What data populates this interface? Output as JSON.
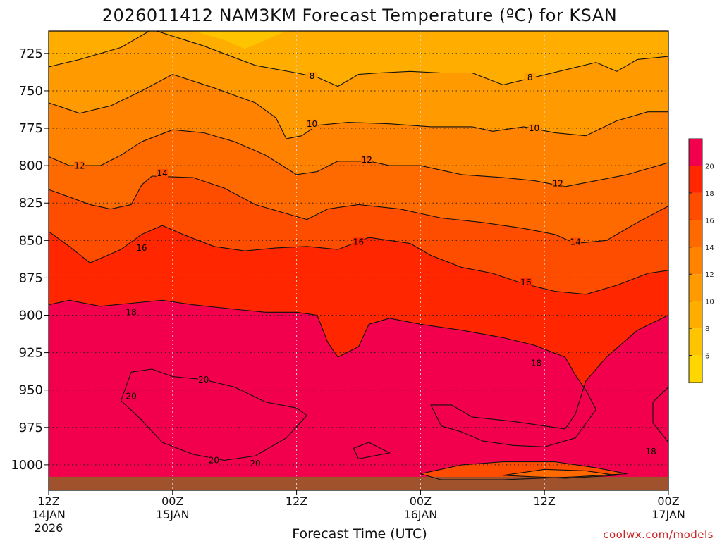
{
  "chart_data": {
    "type": "contour",
    "title": "2026011412 NAM3KM Forecast Temperature (ºC) for KSAN",
    "xlabel": "Forecast Time (UTC)",
    "ylabel": "",
    "credit": "coolwx.com/models",
    "x_ticks": [
      {
        "hour": 0,
        "line1": "12Z",
        "line2": "14JAN",
        "line3": "2026"
      },
      {
        "hour": 12,
        "line1": "00Z",
        "line2": "15JAN",
        "line3": ""
      },
      {
        "hour": 24,
        "line1": "12Z",
        "line2": "",
        "line3": ""
      },
      {
        "hour": 36,
        "line1": "00Z",
        "line2": "16JAN",
        "line3": ""
      },
      {
        "hour": 48,
        "line1": "12Z",
        "line2": "",
        "line3": ""
      },
      {
        "hour": 60,
        "line1": "00Z",
        "line2": "17JAN",
        "line3": ""
      }
    ],
    "xlim": [
      0,
      60
    ],
    "y_ticks": [
      725,
      750,
      775,
      800,
      825,
      850,
      875,
      900,
      925,
      950,
      975,
      1000
    ],
    "ylim": [
      1017,
      710
    ],
    "colorbar": {
      "levels": [
        4,
        6,
        8,
        10,
        12,
        14,
        16,
        18,
        20,
        22
      ],
      "tick_labels": [
        "6",
        "8",
        "10",
        "12",
        "14",
        "16",
        "18",
        "20"
      ],
      "colors": [
        "#ffd700",
        "#ffc400",
        "#ffae00",
        "#ff9a00",
        "#ff8200",
        "#ff6a00",
        "#ff4d00",
        "#ff2600",
        "#f2004e"
      ]
    },
    "contours": [
      {
        "level": 8,
        "labels": [
          {
            "x": 25.5,
            "y": 741
          },
          {
            "x": 46.6,
            "y": 742
          }
        ],
        "points": [
          [
            0,
            734
          ],
          [
            3,
            729
          ],
          [
            7,
            721
          ],
          [
            10,
            709
          ],
          [
            15,
            720
          ],
          [
            20,
            733
          ],
          [
            24,
            738
          ],
          [
            26,
            741
          ],
          [
            28,
            747
          ],
          [
            30,
            739
          ],
          [
            32,
            738
          ],
          [
            35,
            737
          ],
          [
            38,
            738
          ],
          [
            41,
            738
          ],
          [
            44,
            746
          ],
          [
            47,
            741
          ],
          [
            50,
            736
          ],
          [
            53,
            731
          ],
          [
            55,
            737
          ],
          [
            57,
            729
          ],
          [
            60,
            727
          ]
        ]
      },
      {
        "level": 10,
        "labels": [
          {
            "x": 25.5,
            "y": 773
          },
          {
            "x": 47.0,
            "y": 776
          }
        ],
        "points": [
          [
            0,
            758
          ],
          [
            3,
            765
          ],
          [
            6,
            760
          ],
          [
            9,
            750
          ],
          [
            12,
            739
          ],
          [
            16,
            748
          ],
          [
            20,
            758
          ],
          [
            22,
            768
          ],
          [
            23,
            782
          ],
          [
            24.5,
            780
          ],
          [
            26,
            773
          ],
          [
            29,
            771
          ],
          [
            33,
            772
          ],
          [
            37,
            774
          ],
          [
            41,
            774
          ],
          [
            43,
            777
          ],
          [
            46,
            774
          ],
          [
            49,
            778
          ],
          [
            52,
            780
          ],
          [
            55,
            770
          ],
          [
            58,
            764
          ],
          [
            60,
            764
          ]
        ]
      },
      {
        "level": 12,
        "labels": [
          {
            "x": 3,
            "y": 801
          },
          {
            "x": 30.8,
            "y": 797
          },
          {
            "x": 49.3,
            "y": 813
          }
        ],
        "points": [
          [
            0,
            794
          ],
          [
            2,
            800
          ],
          [
            5,
            800
          ],
          [
            7,
            793
          ],
          [
            9,
            784
          ],
          [
            12,
            776
          ],
          [
            15,
            778
          ],
          [
            18,
            784
          ],
          [
            21,
            793
          ],
          [
            24,
            806
          ],
          [
            26,
            804
          ],
          [
            28,
            797
          ],
          [
            31,
            797
          ],
          [
            33,
            800
          ],
          [
            36,
            800
          ],
          [
            40,
            806
          ],
          [
            44,
            808
          ],
          [
            47,
            810
          ],
          [
            50,
            814
          ],
          [
            53,
            810
          ],
          [
            56,
            806
          ],
          [
            60,
            798
          ]
        ]
      },
      {
        "level": 14,
        "labels": [
          {
            "x": 11,
            "y": 806
          },
          {
            "x": 51,
            "y": 852
          }
        ],
        "points": [
          [
            0,
            816
          ],
          [
            2,
            821
          ],
          [
            4,
            826
          ],
          [
            6,
            829
          ],
          [
            8,
            826
          ],
          [
            9,
            813
          ],
          [
            10,
            807
          ],
          [
            14,
            808
          ],
          [
            17,
            815
          ],
          [
            20,
            826
          ],
          [
            23,
            832
          ],
          [
            25,
            836
          ],
          [
            27,
            829
          ],
          [
            30,
            826
          ],
          [
            34,
            829
          ],
          [
            38,
            835
          ],
          [
            42,
            838
          ],
          [
            46,
            842
          ],
          [
            49,
            846
          ],
          [
            51,
            852
          ],
          [
            54,
            850
          ],
          [
            57,
            838
          ],
          [
            60,
            827
          ]
        ]
      },
      {
        "level": 16,
        "labels": [
          {
            "x": 9,
            "y": 856
          },
          {
            "x": 30,
            "y": 852
          },
          {
            "x": 46.2,
            "y": 879
          }
        ],
        "points": [
          [
            0,
            844
          ],
          [
            2,
            854
          ],
          [
            4,
            865
          ],
          [
            7,
            856
          ],
          [
            9,
            846
          ],
          [
            11,
            840
          ],
          [
            13,
            846
          ],
          [
            16,
            854
          ],
          [
            19,
            857
          ],
          [
            22,
            855
          ],
          [
            25,
            854
          ],
          [
            28,
            856
          ],
          [
            31,
            848
          ],
          [
            35,
            852
          ],
          [
            37,
            860
          ],
          [
            40,
            868
          ],
          [
            43,
            872
          ],
          [
            46,
            879
          ],
          [
            49,
            884
          ],
          [
            52,
            886
          ],
          [
            55,
            880
          ],
          [
            58,
            872
          ],
          [
            60,
            870
          ]
        ]
      },
      {
        "level": 18,
        "labels": [
          {
            "x": 8,
            "y": 899
          },
          {
            "x": 47.2,
            "y": 933
          },
          {
            "x": 58.3,
            "y": 992
          }
        ],
        "points": [
          [
            0,
            893
          ],
          [
            2,
            890
          ],
          [
            5,
            894
          ],
          [
            8,
            892
          ],
          [
            11,
            890
          ],
          [
            14,
            893
          ],
          [
            18,
            896
          ],
          [
            21,
            898
          ],
          [
            24,
            898
          ],
          [
            26,
            900
          ],
          [
            27,
            918
          ],
          [
            28,
            928
          ],
          [
            30,
            921
          ],
          [
            31,
            906
          ],
          [
            33,
            902
          ],
          [
            36,
            906
          ],
          [
            40,
            910
          ],
          [
            44,
            915
          ],
          [
            47,
            920
          ],
          [
            50,
            928
          ],
          [
            51,
            940
          ],
          [
            52,
            950
          ],
          [
            53,
            963
          ],
          [
            51,
            982
          ],
          [
            48,
            988
          ],
          [
            45,
            987
          ],
          [
            42,
            984
          ],
          [
            40,
            978
          ],
          [
            38,
            974
          ],
          [
            37,
            960
          ],
          [
            39,
            960
          ],
          [
            41,
            968
          ],
          [
            45,
            971
          ],
          [
            48,
            974
          ],
          [
            50,
            976
          ],
          [
            51,
            966
          ],
          [
            52,
            944
          ],
          [
            54,
            928
          ],
          [
            57,
            910
          ],
          [
            60,
            900
          ]
        ]
      },
      {
        "level": 20,
        "labels": [
          {
            "x": 15,
            "y": 944
          },
          {
            "x": 8,
            "y": 955
          },
          {
            "x": 16,
            "y": 998
          },
          {
            "x": 20,
            "y": 1000
          }
        ],
        "points": [
          [
            8,
            938
          ],
          [
            10,
            936
          ],
          [
            12,
            941
          ],
          [
            15,
            943
          ],
          [
            18,
            948
          ],
          [
            21,
            958
          ],
          [
            24,
            962
          ],
          [
            25,
            967
          ],
          [
            23,
            982
          ],
          [
            20,
            994
          ],
          [
            17,
            997
          ],
          [
            14,
            993
          ],
          [
            11,
            985
          ],
          [
            9,
            970
          ],
          [
            7,
            957
          ],
          [
            8,
            938
          ]
        ]
      }
    ],
    "terrain_color": "#a0522d",
    "terrain_top_pressure": 1008
  }
}
